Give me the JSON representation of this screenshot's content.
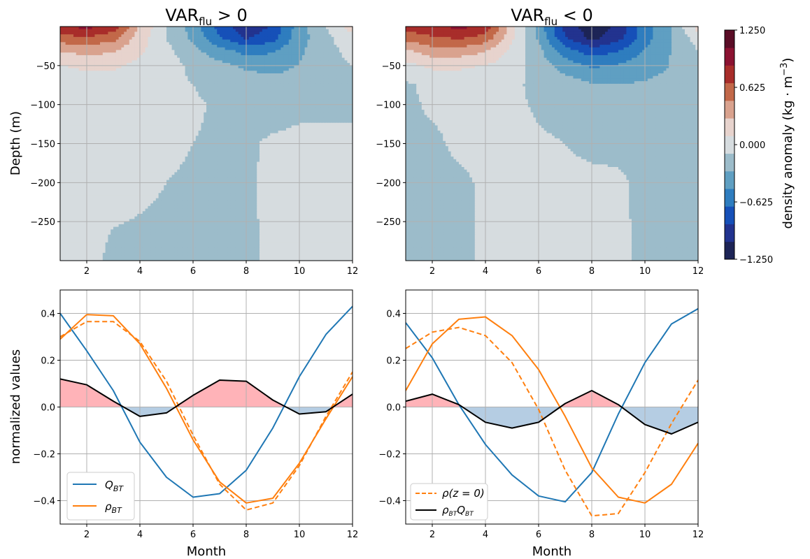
{
  "chart_data": [
    {
      "type": "heatmap",
      "title": "VAR",
      "title_sub": "flu",
      "title_rel": "> 0",
      "ylabel": "Depth (m)",
      "xlim": [
        1,
        12
      ],
      "ylim": [
        -300,
        0
      ],
      "xticks": [
        "2",
        "4",
        "6",
        "8",
        "10",
        "12"
      ],
      "yticks": [
        "−50",
        "−100",
        "−150",
        "−200",
        "−250"
      ],
      "months": [
        1,
        2,
        3,
        4,
        5,
        6,
        7,
        8,
        9,
        10,
        11,
        12
      ],
      "depths": [
        0,
        -15,
        -30,
        -50,
        -75,
        -100,
        -150,
        -200,
        -300
      ],
      "values": [
        [
          1.0,
          1.1,
          0.95,
          0.4,
          0.0,
          -0.3,
          -0.7,
          -1.0,
          -0.8,
          -0.3,
          0.0,
          0.3
        ],
        [
          0.75,
          0.8,
          0.7,
          0.3,
          0.0,
          -0.25,
          -0.6,
          -0.85,
          -0.7,
          -0.3,
          -0.05,
          0.15
        ],
        [
          0.45,
          0.5,
          0.45,
          0.25,
          0.05,
          -0.15,
          -0.35,
          -0.5,
          -0.45,
          -0.25,
          -0.05,
          0.05
        ],
        [
          0.2,
          0.25,
          0.25,
          0.15,
          0.1,
          -0.05,
          -0.15,
          -0.25,
          -0.3,
          -0.2,
          -0.05,
          0.0
        ],
        [
          0.07,
          0.1,
          0.1,
          0.08,
          0.05,
          0.0,
          -0.05,
          -0.08,
          -0.1,
          -0.1,
          -0.05,
          -0.05
        ],
        [
          0.06,
          0.07,
          0.07,
          0.06,
          0.05,
          0.02,
          -0.02,
          -0.04,
          -0.06,
          -0.04,
          -0.05,
          -0.05
        ],
        [
          0.05,
          0.06,
          0.06,
          0.05,
          0.03,
          0.0,
          -0.02,
          -0.02,
          0.02,
          0.04,
          0.05,
          0.05
        ],
        [
          0.04,
          0.05,
          0.04,
          0.02,
          0.0,
          -0.02,
          -0.02,
          -0.02,
          0.03,
          0.04,
          0.05,
          0.05
        ],
        [
          0.03,
          0.04,
          -0.03,
          -0.03,
          -0.03,
          -0.03,
          -0.03,
          -0.03,
          0.03,
          0.04,
          0.05,
          0.05
        ]
      ]
    },
    {
      "type": "heatmap",
      "title": "VAR",
      "title_sub": "flu",
      "title_rel": "< 0",
      "xlim": [
        1,
        12
      ],
      "ylim": [
        -300,
        0
      ],
      "xticks": [
        "2",
        "4",
        "6",
        "8",
        "10",
        "12"
      ],
      "yticks": [
        "−50",
        "−100",
        "−150",
        "−200",
        "−250"
      ],
      "months": [
        1,
        2,
        3,
        4,
        5,
        6,
        7,
        8,
        9,
        10,
        11,
        12
      ],
      "depths": [
        0,
        -15,
        -30,
        -50,
        -75,
        -100,
        -150,
        -200,
        -300
      ],
      "values": [
        [
          0.9,
          1.0,
          1.1,
          1.0,
          0.3,
          -0.3,
          -0.9,
          -1.2,
          -1.0,
          -0.5,
          -0.2,
          0.3
        ],
        [
          0.7,
          0.8,
          0.85,
          0.75,
          0.25,
          -0.25,
          -0.8,
          -1.1,
          -0.9,
          -0.5,
          -0.2,
          0.1
        ],
        [
          0.4,
          0.55,
          0.55,
          0.45,
          0.15,
          -0.15,
          -0.55,
          -0.75,
          -0.65,
          -0.4,
          -0.2,
          0.0
        ],
        [
          0.15,
          0.25,
          0.25,
          0.2,
          0.1,
          -0.1,
          -0.3,
          -0.45,
          -0.4,
          -0.3,
          -0.2,
          -0.1
        ],
        [
          -0.03,
          0.05,
          0.07,
          0.06,
          0.04,
          -0.05,
          -0.1,
          -0.18,
          -0.2,
          -0.18,
          -0.15,
          -0.12
        ],
        [
          -0.04,
          0.03,
          0.05,
          0.05,
          0.03,
          -0.02,
          -0.05,
          -0.07,
          -0.08,
          -0.08,
          -0.08,
          -0.08
        ],
        [
          -0.04,
          -0.04,
          0.04,
          0.05,
          0.04,
          0.02,
          0.0,
          -0.02,
          -0.03,
          -0.04,
          -0.04,
          -0.04
        ],
        [
          -0.04,
          -0.04,
          -0.04,
          0.03,
          0.03,
          0.03,
          0.02,
          0.02,
          0.02,
          -0.03,
          -0.04,
          -0.04
        ],
        [
          -0.04,
          -0.04,
          -0.04,
          0.03,
          0.03,
          0.03,
          0.03,
          0.03,
          0.03,
          -0.03,
          -0.04,
          -0.04
        ]
      ]
    },
    {
      "type": "line",
      "xlabel": "Month",
      "ylabel": "normalized values",
      "xlim": [
        1,
        12
      ],
      "ylim": [
        -0.5,
        0.5
      ],
      "xticks": [
        "2",
        "4",
        "6",
        "8",
        "10",
        "12"
      ],
      "yticks": [
        "0.4",
        "0.2",
        "0.0",
        "−0.2",
        "−0.4"
      ],
      "x": [
        1,
        2,
        3,
        4,
        5,
        6,
        7,
        8,
        9,
        10,
        11,
        12
      ],
      "series": [
        {
          "key": "q",
          "color": "#1f77b4",
          "dash": false,
          "values": [
            0.4,
            0.24,
            0.07,
            -0.15,
            -0.3,
            -0.385,
            -0.37,
            -0.27,
            -0.09,
            0.13,
            0.31,
            0.43
          ]
        },
        {
          "key": "rho",
          "color": "#ff7f0e",
          "dash": false,
          "values": [
            0.29,
            0.395,
            0.39,
            0.27,
            0.08,
            -0.14,
            -0.32,
            -0.41,
            -0.39,
            -0.24,
            -0.05,
            0.13
          ]
        },
        {
          "key": "rho0",
          "color": "#ff7f0e",
          "dash": true,
          "values": [
            0.3,
            0.365,
            0.365,
            0.28,
            0.11,
            -0.12,
            -0.33,
            -0.44,
            -0.41,
            -0.25,
            -0.04,
            0.15
          ]
        },
        {
          "key": "prod",
          "color": "#000000",
          "dash": false,
          "values": [
            0.12,
            0.095,
            0.025,
            -0.04,
            -0.025,
            0.05,
            0.115,
            0.11,
            0.03,
            -0.03,
            -0.02,
            0.055
          ]
        }
      ],
      "fill": {
        "series": "prod",
        "pos_color": "#ffb3b8",
        "neg_color": "#b5cde3"
      },
      "legend": {
        "placement": "lower-left",
        "entries": [
          {
            "label": "Q",
            "sub": "BT",
            "color": "#1f77b4",
            "dash": false
          },
          {
            "label": "ρ",
            "sub": "BT",
            "color": "#ff7f0e",
            "dash": false
          }
        ]
      }
    },
    {
      "type": "line",
      "xlabel": "Month",
      "xlim": [
        1,
        12
      ],
      "ylim": [
        -0.5,
        0.5
      ],
      "xticks": [
        "2",
        "4",
        "6",
        "8",
        "10",
        "12"
      ],
      "yticks": [
        "0.4",
        "0.2",
        "0.0",
        "−0.2",
        "−0.4"
      ],
      "x": [
        1,
        2,
        3,
        4,
        5,
        6,
        7,
        8,
        9,
        10,
        11,
        12
      ],
      "series": [
        {
          "key": "q",
          "color": "#1f77b4",
          "dash": false,
          "values": [
            0.36,
            0.21,
            0.01,
            -0.16,
            -0.29,
            -0.38,
            -0.405,
            -0.28,
            -0.03,
            0.19,
            0.355,
            0.42
          ]
        },
        {
          "key": "rho",
          "color": "#ff7f0e",
          "dash": false,
          "values": [
            0.07,
            0.27,
            0.375,
            0.385,
            0.305,
            0.16,
            -0.04,
            -0.26,
            -0.385,
            -0.41,
            -0.33,
            -0.155
          ]
        },
        {
          "key": "rho0",
          "color": "#ff7f0e",
          "dash": true,
          "values": [
            0.25,
            0.32,
            0.34,
            0.305,
            0.19,
            -0.01,
            -0.27,
            -0.465,
            -0.455,
            -0.28,
            -0.07,
            0.115
          ]
        },
        {
          "key": "prod",
          "color": "#000000",
          "dash": false,
          "values": [
            0.025,
            0.055,
            0.01,
            -0.065,
            -0.09,
            -0.065,
            0.015,
            0.07,
            0.01,
            -0.075,
            -0.115,
            -0.065
          ]
        }
      ],
      "fill": {
        "series": "prod",
        "pos_color": "#ffb3b8",
        "neg_color": "#b5cde3"
      },
      "legend": {
        "placement": "lower-left",
        "entries": [
          {
            "label": "ρ(z = 0)",
            "sub": "",
            "color": "#ff7f0e",
            "dash": true
          },
          {
            "label": "ρ",
            "sub": "BT",
            "label2": "Q",
            "sub2": "BT",
            "color": "#000000",
            "dash": false
          }
        ]
      }
    }
  ],
  "colorbar": {
    "label": "density anomaly (kg · m",
    "label_sup": "−3",
    "label_end": ")",
    "ticks": [
      "1.250",
      "0.625",
      "0.000",
      "−0.625",
      "−1.250"
    ],
    "levels": [
      -1.25,
      -1.0417,
      -0.8333,
      -0.625,
      -0.4167,
      -0.2083,
      0.0,
      0.2083,
      0.4167,
      0.625,
      0.8333,
      1.0417,
      1.25
    ],
    "colors": [
      "#1d2456",
      "#22338f",
      "#1650b8",
      "#2e7dbf",
      "#5f9fc2",
      "#9cbcca",
      "#d6dcdf",
      "#e7d3cd",
      "#d9a28e",
      "#c26849",
      "#a82d2a",
      "#8b1231",
      "#5a0d26"
    ]
  }
}
